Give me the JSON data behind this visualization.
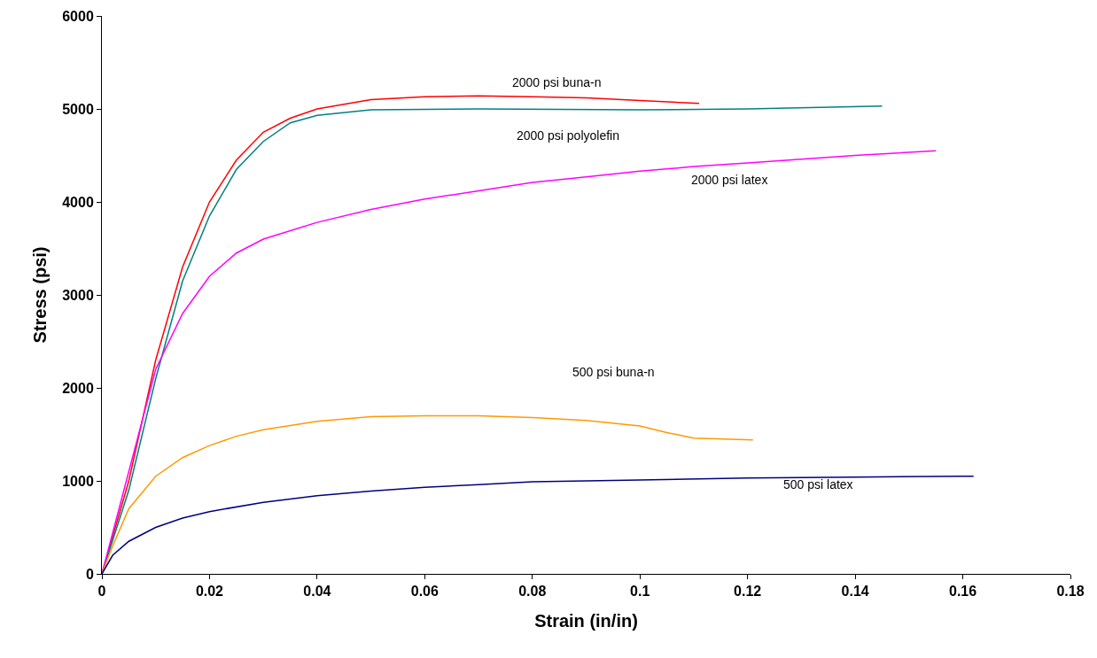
{
  "chart_data": {
    "type": "line",
    "xlabel": "Strain (in/in)",
    "ylabel": "Stress (psi)",
    "xlim": [
      0,
      0.18
    ],
    "xticks": [
      0,
      0.02,
      0.04,
      0.06,
      0.08,
      0.1,
      0.12,
      0.14,
      0.16,
      0.18
    ],
    "ylim": [
      0,
      6000
    ],
    "yticks": [
      0,
      1000,
      2000,
      3000,
      4000,
      5000,
      6000
    ],
    "grid": false,
    "marker": "none",
    "line_style": "solid",
    "series": [
      {
        "color": "#ff0000",
        "x": [
          0,
          0.005,
          0.01,
          0.015,
          0.02,
          0.025,
          0.03,
          0.035,
          0.04,
          0.05,
          0.06,
          0.07,
          0.08,
          0.09,
          0.1,
          0.111
        ],
        "values": [
          0,
          1000,
          2300,
          3300,
          4000,
          4450,
          4750,
          4900,
          5000,
          5100,
          5130,
          5140,
          5130,
          5120,
          5090,
          5060
        ]
      },
      {
        "color": "#008080",
        "x": [
          0,
          0.005,
          0.01,
          0.015,
          0.02,
          0.025,
          0.03,
          0.035,
          0.04,
          0.05,
          0.07,
          0.1,
          0.12,
          0.145
        ],
        "values": [
          0,
          900,
          2100,
          3150,
          3850,
          4350,
          4650,
          4850,
          4930,
          4990,
          5000,
          4990,
          5000,
          5030
        ]
      },
      {
        "color": "#ff00ff",
        "x": [
          0,
          0.005,
          0.01,
          0.015,
          0.02,
          0.025,
          0.03,
          0.04,
          0.05,
          0.06,
          0.07,
          0.08,
          0.09,
          0.1,
          0.11,
          0.12,
          0.13,
          0.14,
          0.155
        ],
        "values": [
          0,
          1100,
          2200,
          2800,
          3200,
          3450,
          3600,
          3780,
          3920,
          4030,
          4120,
          4210,
          4270,
          4330,
          4380,
          4420,
          4460,
          4500,
          4550
        ]
      },
      {
        "color": "#ff9900",
        "x": [
          0,
          0.002,
          0.005,
          0.01,
          0.015,
          0.02,
          0.025,
          0.03,
          0.04,
          0.05,
          0.06,
          0.07,
          0.08,
          0.09,
          0.1,
          0.105,
          0.11,
          0.121
        ],
        "values": [
          0,
          300,
          700,
          1050,
          1250,
          1380,
          1480,
          1550,
          1640,
          1690,
          1700,
          1700,
          1680,
          1650,
          1590,
          1520,
          1460,
          1440
        ]
      },
      {
        "color": "#000080",
        "x": [
          0,
          0.002,
          0.005,
          0.01,
          0.015,
          0.02,
          0.03,
          0.04,
          0.05,
          0.06,
          0.07,
          0.08,
          0.09,
          0.1,
          0.12,
          0.14,
          0.16,
          0.162
        ],
        "values": [
          0,
          200,
          350,
          500,
          600,
          670,
          770,
          840,
          890,
          930,
          960,
          990,
          1000,
          1010,
          1030,
          1040,
          1050,
          1050
        ]
      }
    ],
    "annotations": [
      "2000 psi buna-n",
      "2000 psi polyolefin",
      "2000 psi latex",
      "500 psi buna-n",
      "500 psi latex"
    ]
  }
}
